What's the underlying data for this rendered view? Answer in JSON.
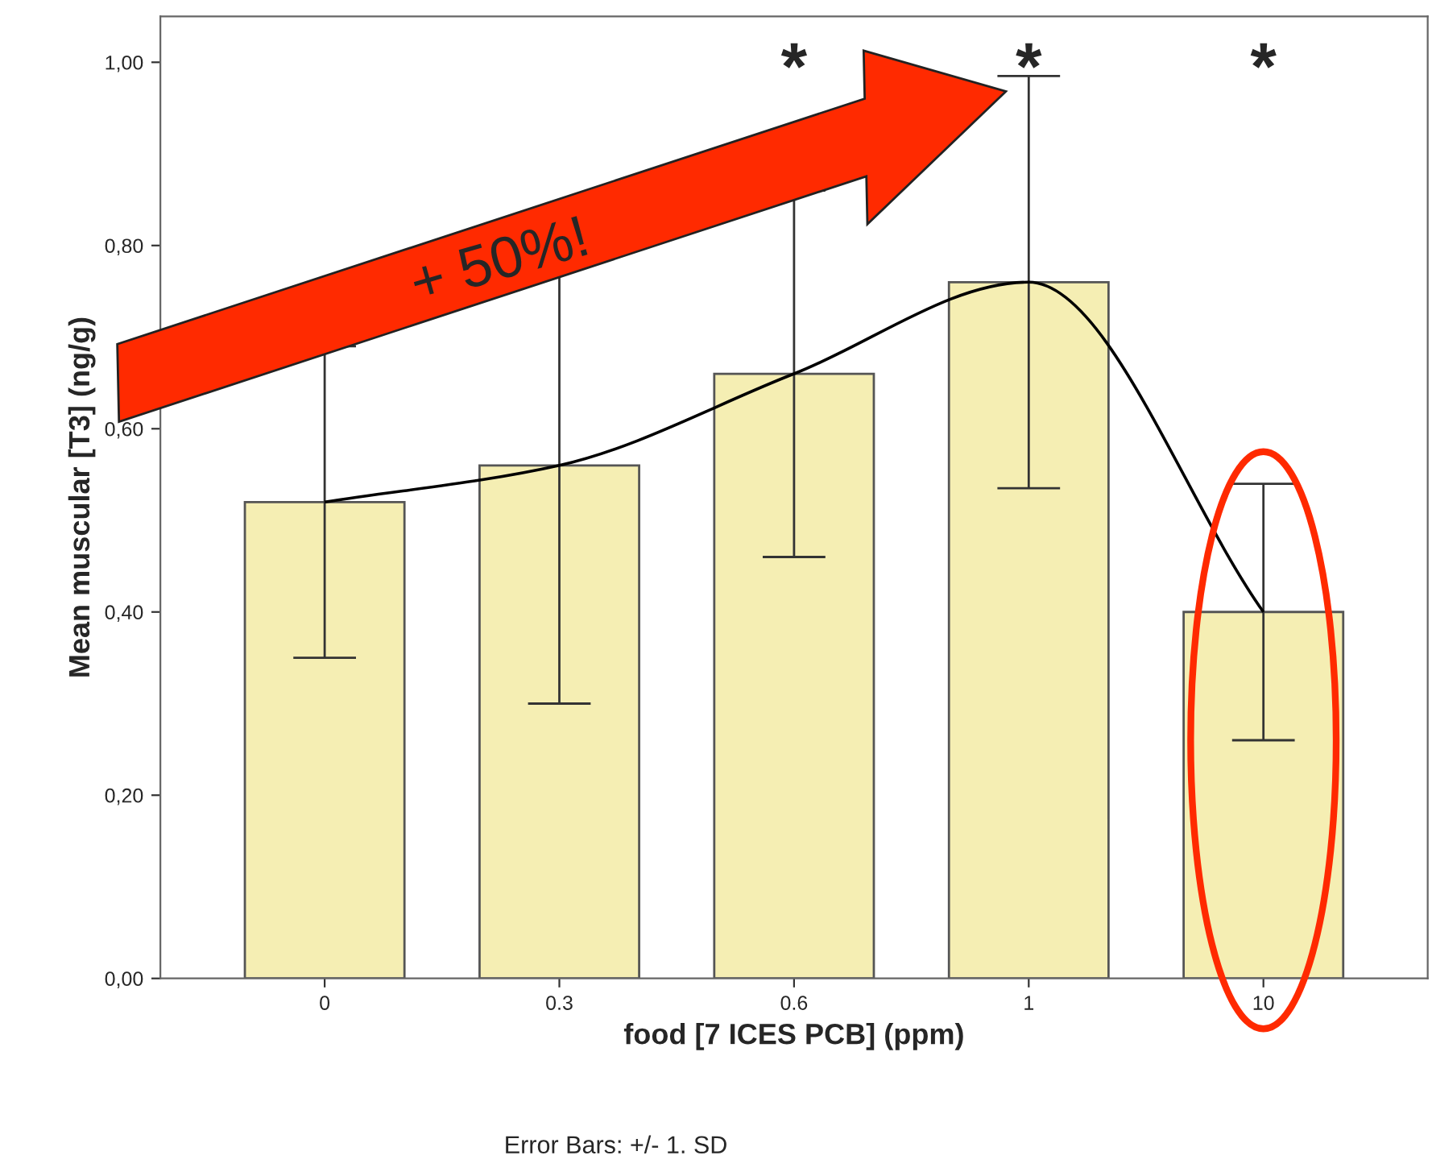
{
  "chart_data": {
    "type": "bar",
    "xlabel": "food [7 ICES PCB] (ppm)",
    "ylabel": "Mean muscular [T3] (ng/g)",
    "categories": [
      "0",
      "0.3",
      "0.6",
      "1",
      "10"
    ],
    "series": [
      {
        "color": "#f5eeb3",
        "values": [
          0.52,
          0.56,
          0.66,
          0.76,
          0.4
        ],
        "errors": [
          0.17,
          0.26,
          0.2,
          0.225,
          0.14
        ]
      },
      {
        "type": "line",
        "color": "#000000",
        "values": [
          0.52,
          0.56,
          0.66,
          0.76,
          0.4
        ]
      }
    ],
    "ylim": [
      0,
      1.05
    ],
    "yticks": [
      {
        "value": 0,
        "label": "0,00"
      },
      {
        "value": 0.2,
        "label": "0,20"
      },
      {
        "value": 0.4,
        "label": "0,40"
      },
      {
        "value": 0.6,
        "label": "0,60"
      },
      {
        "value": 0.8,
        "label": "0,80"
      },
      {
        "value": 1.0,
        "label": "1,00"
      }
    ],
    "grid": false,
    "annotations": [
      "+ 50%!",
      "*",
      "*",
      "*",
      "Error Bars: +/- 1. SD"
    ]
  }
}
